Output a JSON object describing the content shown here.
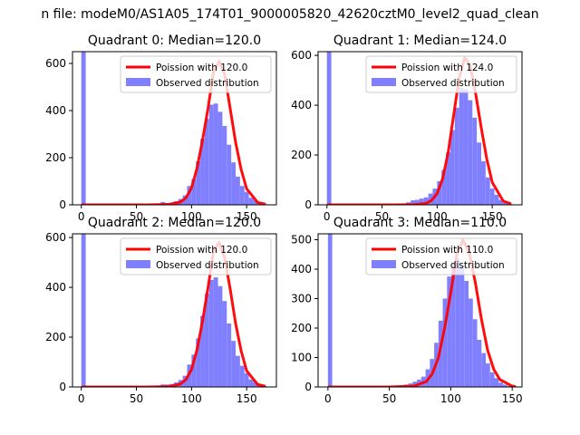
{
  "figure": {
    "suptitle": "n file: modeM0/AS1A05_174T01_9000005820_42620cztM0_level2_quad_clean"
  },
  "chart_data": [
    {
      "type": "bar",
      "title": "Quadrant 0: Median=120.0",
      "xlabel": "",
      "ylabel": "",
      "xlim": [
        -8,
        177
      ],
      "ylim": [
        0,
        650
      ],
      "xticks": [
        0,
        50,
        100,
        150
      ],
      "yticks": [
        0,
        200,
        400,
        600
      ],
      "legend_position": "top-right",
      "series": [
        {
          "name": "Poission with 120.0",
          "kind": "line",
          "color": "#ff0000",
          "lambda": 120.0,
          "total": 6200,
          "x": [
            0,
            60,
            80,
            90,
            95,
            100,
            105,
            110,
            115,
            120,
            125,
            130,
            135,
            140,
            145,
            150,
            160,
            167
          ],
          "y": [
            0,
            0,
            2,
            12,
            30,
            72,
            156,
            275,
            410,
            565,
            610,
            555,
            410,
            265,
            150,
            68,
            10,
            3
          ]
        },
        {
          "name": "Observed distribution",
          "kind": "hist",
          "color": "#8080ff",
          "binwidth": 4,
          "bins": [
            0,
            64,
            68,
            72,
            76,
            80,
            84,
            88,
            92,
            96,
            100,
            104,
            108,
            112,
            116,
            120,
            124,
            128,
            132,
            136,
            140,
            144,
            148,
            152,
            156,
            160,
            164
          ],
          "values": [
            650,
            2,
            4,
            12,
            8,
            10,
            15,
            25,
            40,
            80,
            110,
            185,
            280,
            365,
            425,
            430,
            395,
            335,
            255,
            180,
            120,
            80,
            55,
            30,
            20,
            10,
            5
          ]
        }
      ]
    },
    {
      "type": "bar",
      "title": "Quadrant 1: Median=124.0",
      "xlabel": "",
      "ylabel": "",
      "xlim": [
        -8,
        177
      ],
      "ylim": [
        0,
        615
      ],
      "xticks": [
        0,
        50,
        100,
        150
      ],
      "yticks": [
        0,
        200,
        400,
        600
      ],
      "legend_position": "top-right",
      "series": [
        {
          "name": "Poission with 124.0",
          "kind": "line",
          "color": "#ff0000",
          "lambda": 124.0,
          "total": 6200,
          "x": [
            0,
            60,
            80,
            90,
            95,
            100,
            105,
            110,
            115,
            120,
            125,
            130,
            135,
            140,
            145,
            150,
            160,
            167
          ],
          "y": [
            0,
            0,
            1,
            6,
            18,
            45,
            105,
            210,
            360,
            510,
            590,
            560,
            445,
            310,
            185,
            90,
            15,
            4
          ]
        },
        {
          "name": "Observed distribution",
          "kind": "hist",
          "color": "#8080ff",
          "binwidth": 4,
          "bins": [
            0,
            64,
            68,
            72,
            76,
            80,
            84,
            88,
            92,
            96,
            100,
            104,
            108,
            112,
            116,
            120,
            124,
            128,
            132,
            136,
            140,
            144,
            148,
            152,
            156,
            160,
            164
          ],
          "values": [
            615,
            2,
            5,
            10,
            18,
            20,
            25,
            30,
            45,
            65,
            95,
            140,
            210,
            300,
            390,
            470,
            465,
            420,
            350,
            250,
            175,
            110,
            65,
            40,
            20,
            10,
            5
          ]
        }
      ]
    },
    {
      "type": "bar",
      "title": "Quadrant 2: Median=120.0",
      "xlabel": "",
      "ylabel": "",
      "xlim": [
        -8,
        177
      ],
      "ylim": [
        0,
        615
      ],
      "xticks": [
        0,
        50,
        100,
        150
      ],
      "yticks": [
        0,
        200,
        400,
        600
      ],
      "legend_position": "top-right",
      "series": [
        {
          "name": "Poission with 120.0",
          "kind": "line",
          "color": "#ff0000",
          "lambda": 120.0,
          "total": 6000,
          "x": [
            0,
            60,
            80,
            90,
            95,
            100,
            105,
            110,
            115,
            120,
            125,
            130,
            135,
            140,
            145,
            150,
            160,
            167
          ],
          "y": [
            0,
            0,
            2,
            12,
            30,
            70,
            150,
            265,
            400,
            545,
            580,
            520,
            395,
            255,
            145,
            65,
            10,
            3
          ]
        },
        {
          "name": "Observed distribution",
          "kind": "hist",
          "color": "#8080ff",
          "binwidth": 4,
          "bins": [
            0,
            64,
            68,
            72,
            76,
            80,
            84,
            88,
            92,
            96,
            100,
            104,
            108,
            112,
            116,
            120,
            124,
            128,
            132,
            136,
            140,
            144,
            148,
            152,
            156,
            160,
            164
          ],
          "values": [
            615,
            2,
            4,
            10,
            10,
            12,
            18,
            28,
            45,
            90,
            130,
            195,
            285,
            375,
            430,
            440,
            405,
            345,
            255,
            185,
            125,
            85,
            55,
            30,
            20,
            10,
            5
          ]
        }
      ]
    },
    {
      "type": "bar",
      "title": "Quadrant 3: Median=110.0",
      "xlabel": "",
      "ylabel": "",
      "xlim": [
        -8,
        158
      ],
      "ylim": [
        0,
        520
      ],
      "xticks": [
        0,
        50,
        100,
        150
      ],
      "yticks": [
        0,
        100,
        200,
        300,
        400,
        500
      ],
      "legend_position": "top-right",
      "series": [
        {
          "name": "Poission with 110.0",
          "kind": "line",
          "color": "#ff0000",
          "lambda": 110.0,
          "total": 5000,
          "x": [
            0,
            50,
            70,
            80,
            85,
            90,
            95,
            100,
            105,
            110,
            115,
            120,
            125,
            130,
            135,
            140,
            150,
            153
          ],
          "y": [
            0,
            0,
            3,
            18,
            45,
            100,
            200,
            320,
            450,
            500,
            455,
            355,
            230,
            125,
            60,
            25,
            3,
            1
          ]
        },
        {
          "name": "Observed distribution",
          "kind": "hist",
          "color": "#8080ff",
          "binwidth": 3.5,
          "bins": [
            0,
            55,
            58.5,
            62,
            65.5,
            69,
            72.5,
            76,
            79.5,
            83,
            86.5,
            90,
            93.5,
            97,
            100.5,
            104,
            107.5,
            111,
            114.5,
            118,
            121.5,
            125,
            128.5,
            132,
            135.5,
            139,
            142.5,
            146
          ],
          "values": [
            520,
            3,
            5,
            8,
            12,
            18,
            25,
            35,
            60,
            95,
            150,
            225,
            300,
            375,
            425,
            435,
            410,
            360,
            300,
            230,
            160,
            115,
            80,
            50,
            30,
            15,
            8,
            3
          ]
        }
      ]
    }
  ]
}
